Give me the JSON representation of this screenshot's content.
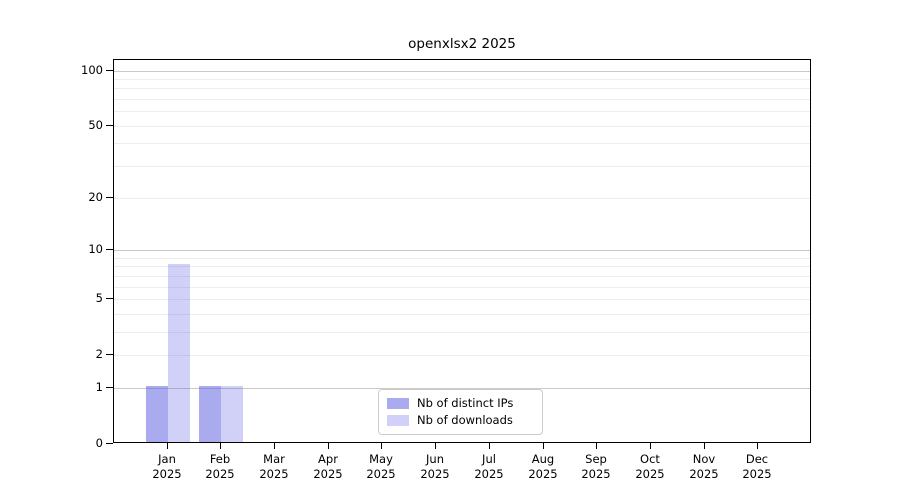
{
  "chart_data": {
    "type": "bar",
    "title": "openxlsx2 2025",
    "categories": [
      "Jan",
      "Feb",
      "Mar",
      "Apr",
      "May",
      "Jun",
      "Jul",
      "Aug",
      "Sep",
      "Oct",
      "Nov",
      "Dec"
    ],
    "category_year_label": "2025",
    "series": [
      {
        "name": "Nb of distinct IPs",
        "color": "rgba(85,85,224,0.50)",
        "values": [
          1,
          1,
          0,
          0,
          0,
          0,
          0,
          0,
          0,
          0,
          0,
          0
        ]
      },
      {
        "name": "Nb of downloads",
        "color": "rgba(85,85,224,0.27)",
        "values": [
          8,
          1,
          0,
          0,
          0,
          0,
          0,
          0,
          0,
          0,
          0,
          0
        ]
      }
    ],
    "yscale": "log1p",
    "ylim": [
      0,
      114
    ],
    "y_tick_values": [
      0,
      1,
      2,
      5,
      10,
      20,
      50,
      100
    ],
    "y_major_grid_values": [
      1,
      10,
      100
    ],
    "y_minor_grid_values": [
      2,
      3,
      4,
      5,
      6,
      7,
      8,
      9,
      20,
      30,
      40,
      50,
      60,
      70,
      80,
      90
    ],
    "grid": "on",
    "legend_position": "bottom-center",
    "colors": {
      "major_grid": "#c9c9c9",
      "minor_grid": "#ededed",
      "spine": "#000000",
      "legend_border": "#cccccc"
    }
  }
}
